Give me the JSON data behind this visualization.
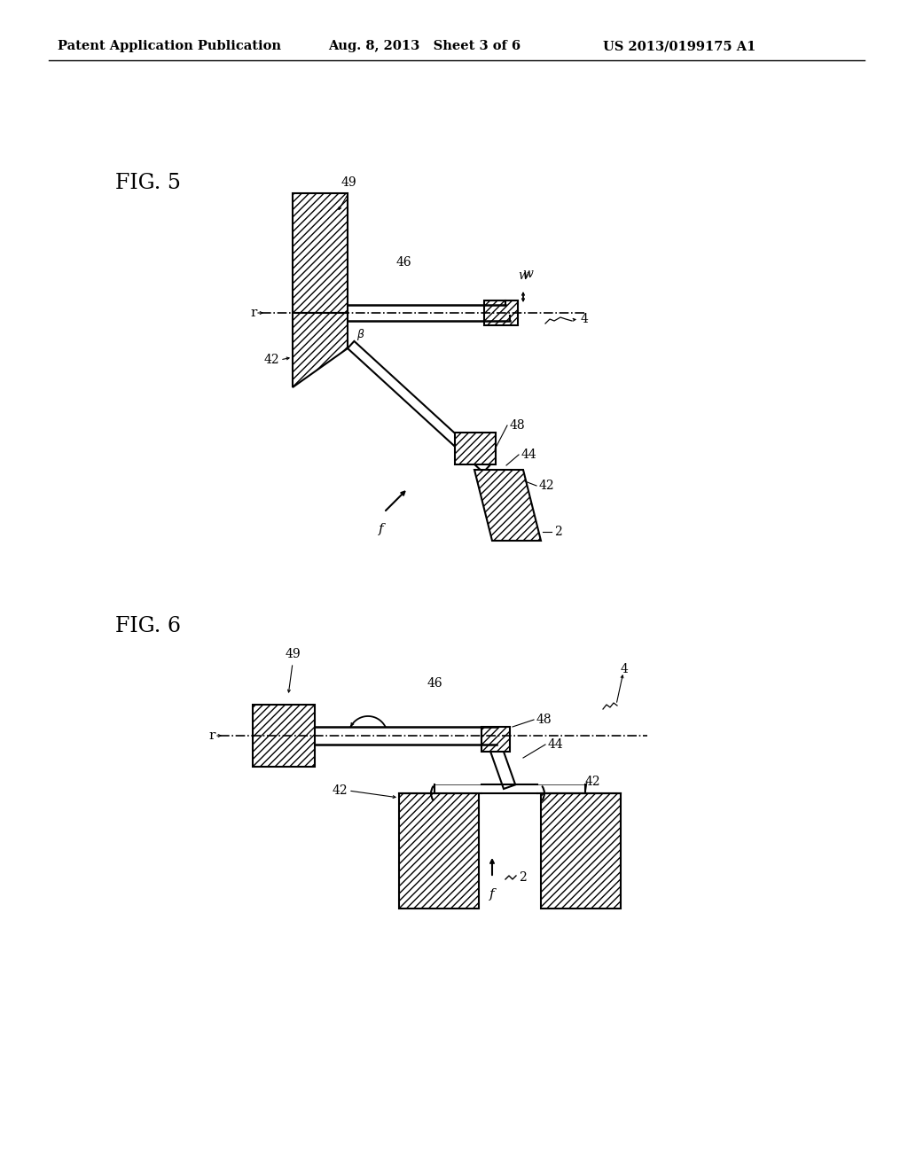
{
  "title_header": "Patent Application Publication",
  "date_header": "Aug. 8, 2013   Sheet 3 of 6",
  "patent_header": "US 2013/0199175 A1",
  "fig5_label": "FIG. 5",
  "fig6_label": "FIG. 6",
  "bg_color": "#ffffff"
}
